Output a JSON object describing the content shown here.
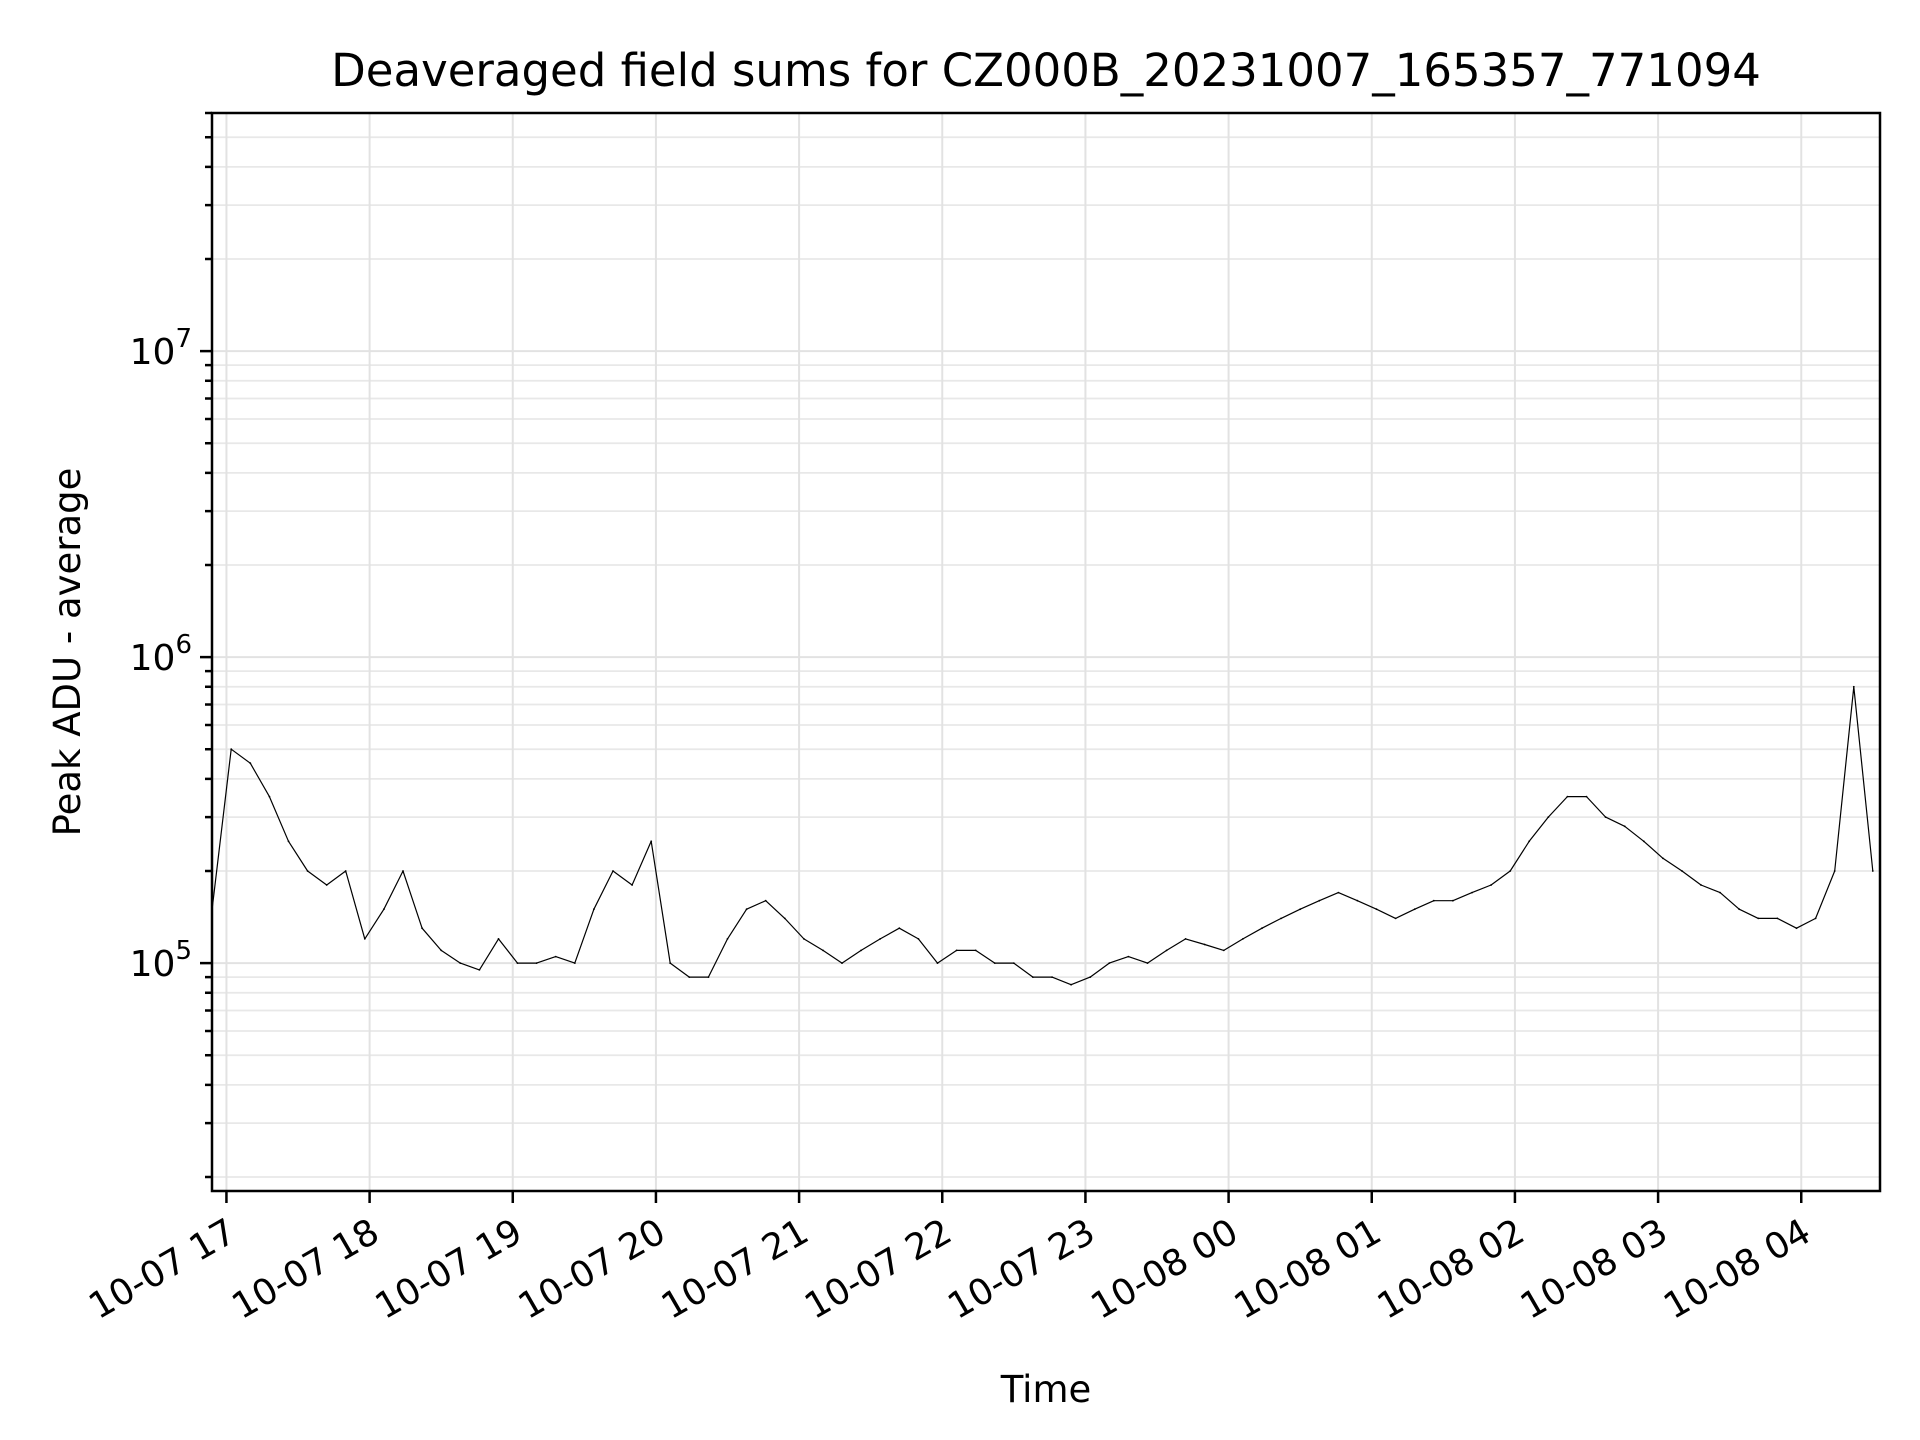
{
  "chart_data": {
    "type": "line",
    "title": "Deaveraged field sums for CZ000B_20231007_165357_771094",
    "xlabel": "Time",
    "ylabel": "Peak ADU - average",
    "yscale": "log",
    "ylim": [
      18000,
      60000000
    ],
    "xlim": [
      "2023-10-07 16:53:57",
      "2023-10-08 04:33:00"
    ],
    "grid": true,
    "x_ticks": [
      "10-07 17",
      "10-07 18",
      "10-07 19",
      "10-07 20",
      "10-07 21",
      "10-07 22",
      "10-07 23",
      "10-08 00",
      "10-08 01",
      "10-08 02",
      "10-08 03",
      "10-08 04"
    ],
    "y_ticks": [
      {
        "value": 100000,
        "base": "10",
        "exp": "5"
      },
      {
        "value": 1000000,
        "base": "10",
        "exp": "6"
      },
      {
        "value": 10000000,
        "base": "10",
        "exp": "7"
      }
    ],
    "series": [
      {
        "color": "#000000",
        "x": [
          "2023-10-07 16:54",
          "2023-10-07 17:02",
          "2023-10-07 17:10",
          "2023-10-07 17:18",
          "2023-10-07 17:26",
          "2023-10-07 17:34",
          "2023-10-07 17:42",
          "2023-10-07 17:50",
          "2023-10-07 17:58",
          "2023-10-07 18:06",
          "2023-10-07 18:14",
          "2023-10-07 18:22",
          "2023-10-07 18:30",
          "2023-10-07 18:38",
          "2023-10-07 18:46",
          "2023-10-07 18:54",
          "2023-10-07 19:02",
          "2023-10-07 19:10",
          "2023-10-07 19:18",
          "2023-10-07 19:26",
          "2023-10-07 19:34",
          "2023-10-07 19:42",
          "2023-10-07 19:50",
          "2023-10-07 19:58",
          "2023-10-07 20:06",
          "2023-10-07 20:14",
          "2023-10-07 20:22",
          "2023-10-07 20:30",
          "2023-10-07 20:38",
          "2023-10-07 20:46",
          "2023-10-07 20:54",
          "2023-10-07 21:02",
          "2023-10-07 21:10",
          "2023-10-07 21:18",
          "2023-10-07 21:26",
          "2023-10-07 21:34",
          "2023-10-07 21:42",
          "2023-10-07 21:50",
          "2023-10-07 21:58",
          "2023-10-07 22:06",
          "2023-10-07 22:14",
          "2023-10-07 22:22",
          "2023-10-07 22:30",
          "2023-10-07 22:38",
          "2023-10-07 22:46",
          "2023-10-07 22:54",
          "2023-10-07 23:02",
          "2023-10-07 23:10",
          "2023-10-07 23:18",
          "2023-10-07 23:26",
          "2023-10-07 23:34",
          "2023-10-07 23:42",
          "2023-10-07 23:50",
          "2023-10-07 23:58",
          "2023-10-08 00:06",
          "2023-10-08 00:14",
          "2023-10-08 00:22",
          "2023-10-08 00:30",
          "2023-10-08 00:38",
          "2023-10-08 00:46",
          "2023-10-08 00:54",
          "2023-10-08 01:02",
          "2023-10-08 01:10",
          "2023-10-08 01:18",
          "2023-10-08 01:26",
          "2023-10-08 01:34",
          "2023-10-08 01:42",
          "2023-10-08 01:50",
          "2023-10-08 01:58",
          "2023-10-08 02:06",
          "2023-10-08 02:14",
          "2023-10-08 02:22",
          "2023-10-08 02:30",
          "2023-10-08 02:38",
          "2023-10-08 02:46",
          "2023-10-08 02:54",
          "2023-10-08 03:02",
          "2023-10-08 03:10",
          "2023-10-08 03:18",
          "2023-10-08 03:26",
          "2023-10-08 03:34",
          "2023-10-08 03:42",
          "2023-10-08 03:50",
          "2023-10-08 03:58",
          "2023-10-08 04:06",
          "2023-10-08 04:14",
          "2023-10-08 04:22",
          "2023-10-08 04:30"
        ],
        "y": [
          150000,
          500000,
          450000,
          350000,
          250000,
          200000,
          180000,
          200000,
          120000,
          150000,
          200000,
          130000,
          110000,
          100000,
          95000,
          120000,
          100000,
          100000,
          105000,
          100000,
          150000,
          200000,
          180000,
          250000,
          100000,
          90000,
          90000,
          120000,
          150000,
          160000,
          140000,
          120000,
          110000,
          100000,
          110000,
          120000,
          130000,
          120000,
          100000,
          110000,
          110000,
          100000,
          100000,
          90000,
          90000,
          85000,
          90000,
          100000,
          105000,
          100000,
          110000,
          120000,
          115000,
          110000,
          120000,
          130000,
          140000,
          150000,
          160000,
          170000,
          160000,
          150000,
          140000,
          150000,
          160000,
          160000,
          170000,
          180000,
          200000,
          250000,
          300000,
          350000,
          350000,
          300000,
          280000,
          250000,
          220000,
          200000,
          180000,
          170000,
          150000,
          140000,
          140000,
          130000,
          140000,
          200000,
          800000,
          200000
        ]
      }
    ]
  }
}
